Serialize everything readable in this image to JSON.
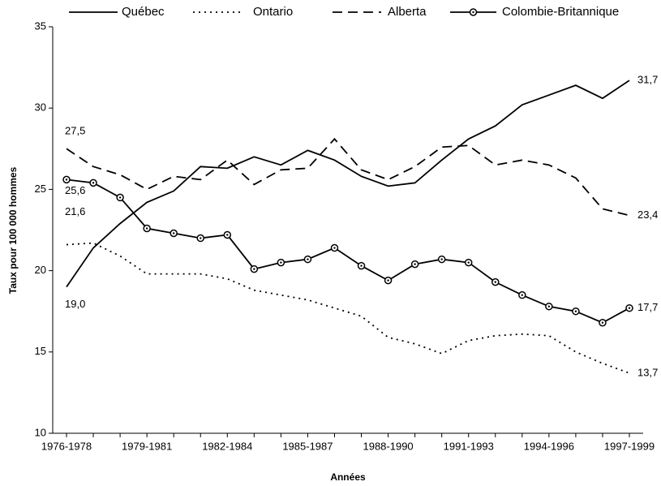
{
  "chart_data": {
    "type": "line",
    "x_label": "Années",
    "y_label": "Taux pour 100 000 hommes",
    "categories": [
      "1976-1978",
      null,
      null,
      "1979-1981",
      null,
      null,
      "1982-1984",
      null,
      null,
      "1985-1987",
      null,
      null,
      "1988-1990",
      null,
      null,
      "1991-1993",
      null,
      null,
      "1994-1996",
      null,
      null,
      "1997-1999"
    ],
    "ylim": [
      10,
      35
    ],
    "yticks": [
      10,
      15,
      20,
      25,
      30,
      35
    ],
    "grid": false,
    "legend": "top",
    "series": [
      {
        "name": "Québec",
        "color": "#000000",
        "style": "solid",
        "marker": "none",
        "values": [
          19.0,
          21.4,
          22.9,
          24.2,
          24.9,
          26.4,
          26.3,
          27.0,
          26.5,
          27.4,
          26.8,
          25.8,
          25.2,
          25.4,
          26.8,
          28.1,
          28.9,
          30.2,
          30.8,
          31.4,
          30.6,
          31.7
        ],
        "value_labels": [
          "19,0",
          null,
          null,
          null,
          null,
          null,
          null,
          null,
          null,
          null,
          null,
          null,
          null,
          null,
          null,
          null,
          null,
          null,
          null,
          null,
          null,
          "31,7"
        ]
      },
      {
        "name": "Ontario",
        "color": "#000000",
        "style": "dotted",
        "marker": "none",
        "values": [
          21.6,
          21.7,
          20.9,
          19.8,
          19.8,
          19.8,
          19.5,
          18.8,
          18.5,
          18.2,
          17.7,
          17.2,
          15.9,
          15.5,
          14.9,
          15.7,
          16.0,
          16.1,
          16.0,
          15.0,
          14.3,
          13.7
        ],
        "value_labels": [
          "21,6",
          null,
          null,
          null,
          null,
          null,
          null,
          null,
          null,
          null,
          null,
          null,
          null,
          null,
          null,
          null,
          null,
          null,
          null,
          null,
          null,
          "13,7"
        ]
      },
      {
        "name": "Alberta",
        "color": "#000000",
        "style": "dashed",
        "marker": "none",
        "values": [
          27.5,
          26.4,
          25.9,
          25.0,
          25.8,
          25.6,
          26.8,
          25.3,
          26.2,
          26.3,
          28.1,
          26.2,
          25.6,
          26.4,
          27.6,
          27.7,
          26.5,
          26.8,
          26.5,
          25.7,
          23.8,
          23.4
        ],
        "value_labels": [
          "27,5",
          null,
          null,
          null,
          null,
          null,
          null,
          null,
          null,
          null,
          null,
          null,
          null,
          null,
          null,
          null,
          null,
          null,
          null,
          null,
          null,
          "23,4"
        ]
      },
      {
        "name": "Colombie-Britannique",
        "color": "#000000",
        "style": "solid",
        "marker": "circle",
        "values": [
          25.6,
          25.4,
          24.5,
          22.6,
          22.3,
          22.0,
          22.2,
          20.1,
          20.5,
          20.7,
          21.4,
          20.3,
          19.4,
          20.4,
          20.7,
          20.5,
          19.3,
          18.5,
          17.8,
          17.5,
          16.8,
          17.7
        ],
        "value_labels": [
          "25,6",
          null,
          null,
          null,
          null,
          null,
          null,
          null,
          null,
          null,
          null,
          null,
          null,
          null,
          null,
          null,
          null,
          null,
          null,
          null,
          null,
          "17,7"
        ]
      }
    ]
  }
}
